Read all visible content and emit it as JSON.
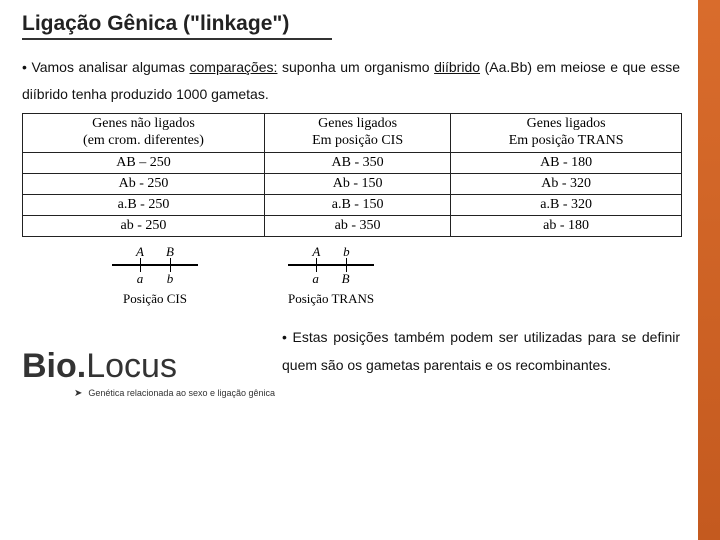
{
  "title": "Ligação Gênica (\"linkage\")",
  "intro_html": "Vamos analisar algumas <span class='u'>comparações:</span> suponha um organismo <span class='u'>diíbrido</span> (Aa.Bb) em meiose e que esse diíbrido tenha produzido 1000 gametas.",
  "table": {
    "headers": [
      {
        "l1": "Genes não ligados",
        "l2": "(em crom. diferentes)"
      },
      {
        "l1": "Genes ligados",
        "l2": "Em posição CIS"
      },
      {
        "l1": "Genes ligados",
        "l2": "Em posição TRANS"
      }
    ],
    "rows": [
      [
        "AB – 250",
        "AB - 350",
        "AB - 180"
      ],
      [
        "Ab - 250",
        "Ab - 150",
        "Ab - 320"
      ],
      [
        "a.B - 250",
        "a.B - 150",
        "a.B - 320"
      ],
      [
        "ab - 250",
        "ab - 350",
        "ab - 180"
      ]
    ]
  },
  "diagram_cis": {
    "top": [
      "A",
      "B"
    ],
    "bottom": [
      "a",
      "b"
    ],
    "label": "Posição CIS"
  },
  "diagram_trans": {
    "top": [
      "A",
      "b"
    ],
    "bottom": [
      "a",
      "B"
    ],
    "label": "Posição TRANS"
  },
  "bottom_text": "Estas posições também podem ser utilizadas para se definir quem são os gametas parentais e os recombinantes.",
  "logo": {
    "b": "Bio.",
    "l": "Locus"
  },
  "logo_sub": "Genética relacionada ao sexo e ligação gênica",
  "colors": {
    "accent": "#d96c2c"
  }
}
